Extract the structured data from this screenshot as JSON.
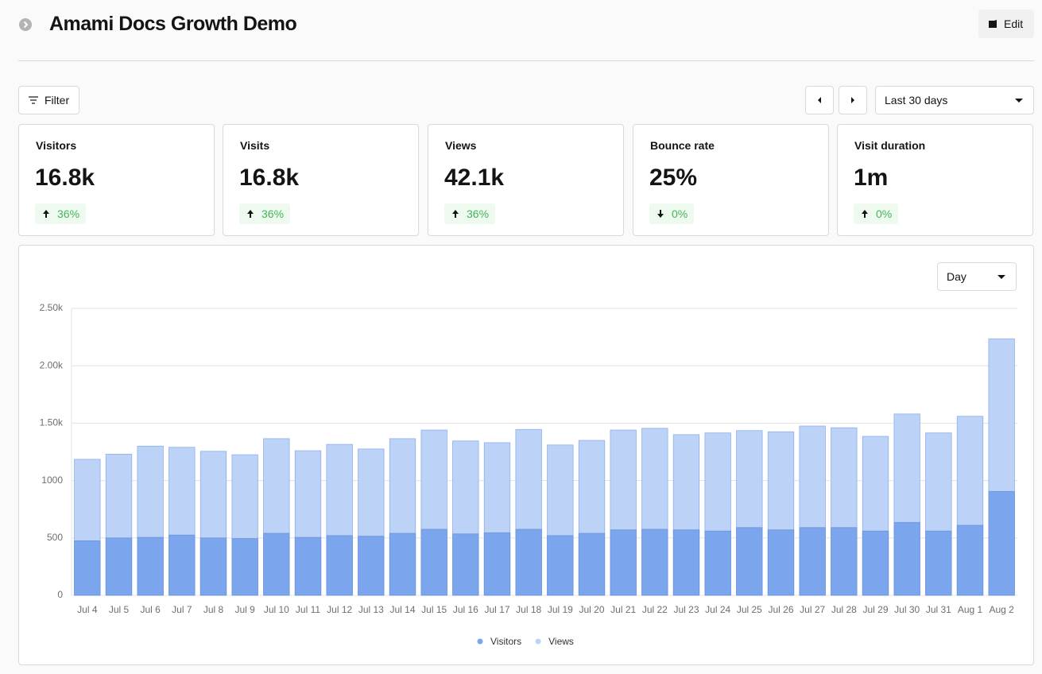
{
  "header": {
    "title": "Amami Docs Growth Demo",
    "edit": "Edit"
  },
  "toolbar": {
    "filter": "Filter",
    "range": "Last 30 days"
  },
  "stats": [
    {
      "label": "Visitors",
      "value": "16.8k",
      "change": "36%",
      "direction": "up"
    },
    {
      "label": "Visits",
      "value": "16.8k",
      "change": "36%",
      "direction": "up"
    },
    {
      "label": "Views",
      "value": "42.1k",
      "change": "36%",
      "direction": "up"
    },
    {
      "label": "Bounce rate",
      "value": "25%",
      "change": "0%",
      "direction": "down"
    },
    {
      "label": "Visit duration",
      "value": "1m",
      "change": "0%",
      "direction": "up"
    }
  ],
  "unit_select": "Day",
  "chart_data": {
    "type": "bar",
    "categories": [
      "Jul 4",
      "Jul 5",
      "Jul 6",
      "Jul 7",
      "Jul 8",
      "Jul 9",
      "Jul 10",
      "Jul 11",
      "Jul 12",
      "Jul 13",
      "Jul 14",
      "Jul 15",
      "Jul 16",
      "Jul 17",
      "Jul 18",
      "Jul 19",
      "Jul 20",
      "Jul 21",
      "Jul 22",
      "Jul 23",
      "Jul 24",
      "Jul 25",
      "Jul 26",
      "Jul 27",
      "Jul 28",
      "Jul 29",
      "Jul 30",
      "Jul 31",
      "Aug 1",
      "Aug 2"
    ],
    "series": [
      {
        "name": "Visitors",
        "color": "#7ba5ec",
        "values": [
          475,
          500,
          505,
          525,
          500,
          495,
          540,
          505,
          520,
          515,
          540,
          575,
          535,
          545,
          575,
          520,
          540,
          570,
          575,
          570,
          560,
          590,
          570,
          590,
          590,
          560,
          635,
          560,
          610,
          905
        ]
      },
      {
        "name": "Views",
        "color": "#bcd2f7",
        "values": [
          1185,
          1230,
          1300,
          1290,
          1255,
          1225,
          1365,
          1260,
          1315,
          1275,
          1365,
          1440,
          1345,
          1330,
          1445,
          1310,
          1350,
          1440,
          1455,
          1400,
          1415,
          1435,
          1425,
          1475,
          1460,
          1385,
          1580,
          1415,
          1560,
          2235
        ]
      }
    ],
    "ylim": [
      0,
      2500
    ],
    "yticks": [
      0,
      500,
      1000,
      {
        "value": 1500,
        "label": "1.50k"
      },
      {
        "value": 2000,
        "label": "2.00k"
      },
      {
        "value": 2500,
        "label": "2.50k"
      }
    ],
    "grid": true,
    "legend": "bottom"
  }
}
